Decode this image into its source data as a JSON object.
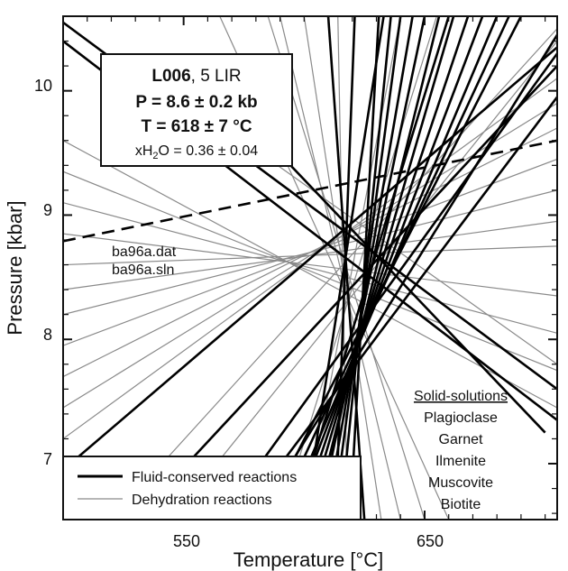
{
  "chart_data": {
    "type": "line",
    "xlabel": "Temperature [°C]",
    "ylabel": "Pressure [kbar]",
    "xlim": [
      500,
      705
    ],
    "ylim": [
      6.55,
      10.6
    ],
    "x_ticks": [
      550,
      650
    ],
    "y_ticks": [
      7,
      8,
      9,
      10
    ],
    "grid": false,
    "intersection": {
      "x": 618,
      "y": 8.6
    },
    "info_box": {
      "sample_bold": "L006",
      "sample_rest": ", 5 LIR",
      "pressure": "P = 8.6 ± 0.2 kb",
      "temperature": "T = 618 ± 7 °C",
      "xh2o_prefix": "xH",
      "xh2o_sub": "2",
      "xh2o_suffix": "O = 0.36 ± 0.04"
    },
    "files": [
      "ba96a.dat",
      "ba96a.sln"
    ],
    "solid_solutions": {
      "title": "Solid-solutions",
      "items": [
        "Plagioclase",
        "Garnet",
        "Ilmenite",
        "Muscovite",
        "Biotite"
      ]
    },
    "legend": {
      "placement": "bottom-left",
      "entries": [
        {
          "label": "Fluid-conserved reactions",
          "style": "thick-black"
        },
        {
          "label": "Dehydration reactions",
          "style": "thin-gray"
        }
      ]
    },
    "dashed_line": {
      "points": [
        [
          500,
          8.79
        ],
        [
          705,
          9.6
        ]
      ]
    },
    "series": [
      {
        "style": "thick",
        "points": [
          [
            500,
            10.4
          ],
          [
            705,
            7.35
          ]
        ]
      },
      {
        "style": "thick",
        "points": [
          [
            500,
            10.55
          ],
          [
            705,
            7.6
          ]
        ]
      },
      {
        "style": "thick",
        "points": [
          [
            560,
            10.1
          ],
          [
            700,
            7.25
          ]
        ]
      },
      {
        "style": "thick",
        "points": [
          [
            500,
            6.95
          ],
          [
            705,
            10.35
          ]
        ]
      },
      {
        "style": "thick",
        "points": [
          [
            530,
            6.55
          ],
          [
            705,
            10.2
          ]
        ]
      },
      {
        "style": "thick",
        "points": [
          [
            565,
            6.55
          ],
          [
            705,
            10.3
          ]
        ]
      },
      {
        "style": "thick",
        "points": [
          [
            573,
            6.55
          ],
          [
            705,
            9.95
          ]
        ]
      },
      {
        "style": "thick",
        "points": [
          [
            580,
            6.55
          ],
          [
            705,
            10.45
          ]
        ]
      },
      {
        "style": "thick",
        "points": [
          [
            583,
            6.55
          ],
          [
            690,
            10.6
          ]
        ]
      },
      {
        "style": "thick",
        "points": [
          [
            588,
            6.55
          ],
          [
            685,
            10.6
          ]
        ]
      },
      {
        "style": "thick",
        "points": [
          [
            592,
            6.55
          ],
          [
            680,
            10.6
          ]
        ]
      },
      {
        "style": "thick",
        "points": [
          [
            595,
            6.55
          ],
          [
            674,
            10.6
          ]
        ]
      },
      {
        "style": "thick",
        "points": [
          [
            598,
            6.55
          ],
          [
            668,
            10.6
          ]
        ]
      },
      {
        "style": "thick",
        "points": [
          [
            601,
            6.55
          ],
          [
            662,
            10.6
          ]
        ]
      },
      {
        "style": "thick",
        "points": [
          [
            604,
            6.55
          ],
          [
            656,
            10.6
          ]
        ]
      },
      {
        "style": "thick",
        "points": [
          [
            606,
            6.55
          ],
          [
            650,
            10.6
          ]
        ]
      },
      {
        "style": "thick",
        "points": [
          [
            609,
            6.55
          ],
          [
            645,
            10.6
          ]
        ]
      },
      {
        "style": "thick",
        "points": [
          [
            612,
            6.55
          ],
          [
            640,
            10.6
          ]
        ]
      },
      {
        "style": "thick",
        "points": [
          [
            615,
            6.55
          ],
          [
            636,
            10.6
          ]
        ]
      },
      {
        "style": "thick",
        "points": [
          [
            619,
            6.55
          ],
          [
            631,
            10.6
          ]
        ]
      },
      {
        "style": "thick",
        "points": [
          [
            610,
            10.6
          ],
          [
            625,
            6.55
          ]
        ]
      },
      {
        "style": "thick",
        "points": [
          [
            621,
            10.6
          ],
          [
            613,
            6.55
          ]
        ]
      },
      {
        "style": "thick",
        "points": [
          [
            600,
            6.55
          ],
          [
            633,
            10.6
          ]
        ]
      },
      {
        "style": "thick",
        "points": [
          [
            596,
            6.55
          ],
          [
            660,
            10.6
          ]
        ]
      },
      {
        "style": "thin",
        "points": [
          [
            500,
            9.6
          ],
          [
            705,
            7.45
          ]
        ]
      },
      {
        "style": "thin",
        "points": [
          [
            500,
            9.35
          ],
          [
            705,
            7.75
          ]
        ]
      },
      {
        "style": "thin",
        "points": [
          [
            500,
            9.1
          ],
          [
            705,
            8.05
          ]
        ]
      },
      {
        "style": "thin",
        "points": [
          [
            500,
            8.85
          ],
          [
            705,
            8.35
          ]
        ]
      },
      {
        "style": "thin",
        "points": [
          [
            500,
            8.6
          ],
          [
            705,
            8.75
          ]
        ]
      },
      {
        "style": "thin",
        "points": [
          [
            500,
            8.4
          ],
          [
            705,
            8.95
          ]
        ]
      },
      {
        "style": "thin",
        "points": [
          [
            500,
            8.2
          ],
          [
            705,
            9.2
          ]
        ]
      },
      {
        "style": "thin",
        "points": [
          [
            500,
            7.95
          ],
          [
            705,
            9.45
          ]
        ]
      },
      {
        "style": "thin",
        "points": [
          [
            500,
            7.7
          ],
          [
            705,
            9.7
          ]
        ]
      },
      {
        "style": "thin",
        "points": [
          [
            500,
            7.45
          ],
          [
            705,
            9.9
          ]
        ]
      },
      {
        "style": "thin",
        "points": [
          [
            500,
            7.2
          ],
          [
            705,
            10.1
          ]
        ]
      },
      {
        "style": "thin",
        "points": [
          [
            520,
            6.55
          ],
          [
            705,
            10.5
          ]
        ]
      },
      {
        "style": "thin",
        "points": [
          [
            545,
            6.55
          ],
          [
            705,
            10.4
          ]
        ]
      },
      {
        "style": "thin",
        "points": [
          [
            590,
            10.6
          ],
          [
            640,
            6.55
          ]
        ]
      },
      {
        "style": "thin",
        "points": [
          [
            600,
            10.6
          ],
          [
            632,
            6.55
          ]
        ]
      },
      {
        "style": "thin",
        "points": [
          [
            614,
            10.6
          ],
          [
            618,
            6.55
          ]
        ]
      },
      {
        "style": "thin",
        "points": [
          [
            565,
            10.6
          ],
          [
            660,
            6.55
          ]
        ]
      },
      {
        "style": "thin",
        "points": [
          [
            560,
            9.8
          ],
          [
            705,
            7.8
          ]
        ]
      },
      {
        "style": "thin",
        "points": [
          [
            585,
            10.6
          ],
          [
            650,
            6.55
          ]
        ]
      },
      {
        "style": "thin",
        "points": [
          [
            640,
            10.6
          ],
          [
            600,
            6.55
          ]
        ]
      },
      {
        "style": "thin",
        "points": [
          [
            655,
            10.6
          ],
          [
            590,
            6.55
          ]
        ]
      }
    ]
  }
}
